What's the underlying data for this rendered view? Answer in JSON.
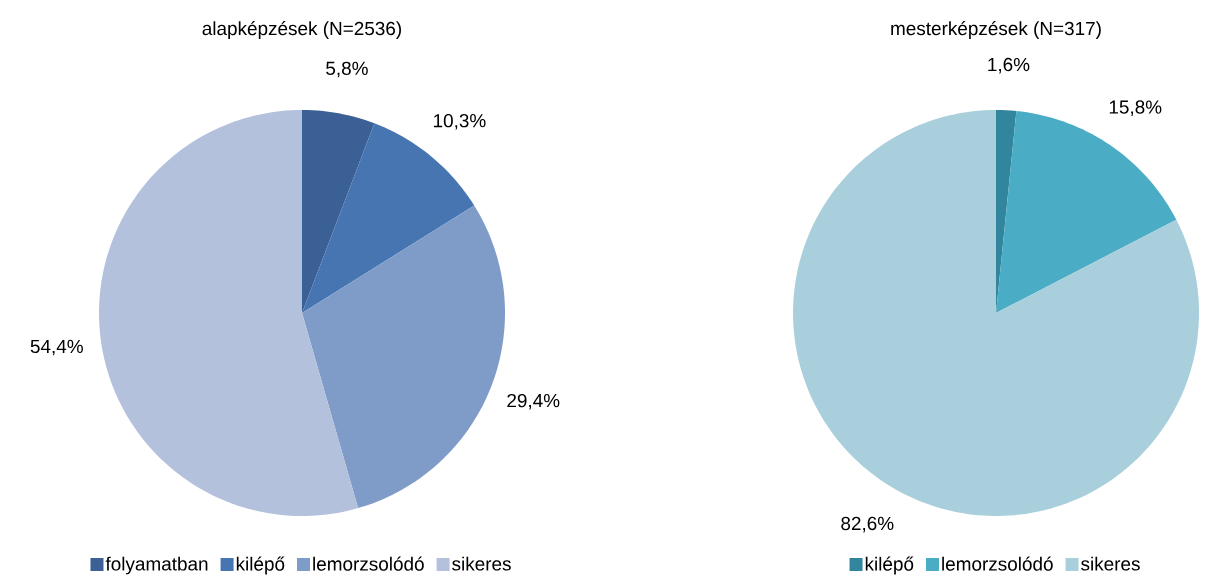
{
  "chart_data": [
    {
      "type": "pie",
      "title": "alapképzések (N=2536)",
      "categories": [
        "folyamatban",
        "kilépő",
        "lemorzsolódó",
        "sikeres"
      ],
      "values": [
        5.8,
        10.3,
        29.4,
        54.4
      ],
      "value_labels": [
        "5,8%",
        "10,3%",
        "29,4%",
        "54,4%"
      ],
      "colors": [
        "#3b6096",
        "#4675b1",
        "#7f9cc9",
        "#b4c1dd"
      ],
      "legend": "bottom"
    },
    {
      "type": "pie",
      "title": "mesterképzések (N=317)",
      "categories": [
        "kilépő",
        "lemorzsolódó",
        "sikeres"
      ],
      "values": [
        1.6,
        15.8,
        82.6
      ],
      "value_labels": [
        "1,6%",
        "15,8%",
        "82,6%"
      ],
      "colors": [
        "#31859c",
        "#4bacc6",
        "#a9cfdc"
      ],
      "legend": "bottom"
    }
  ]
}
